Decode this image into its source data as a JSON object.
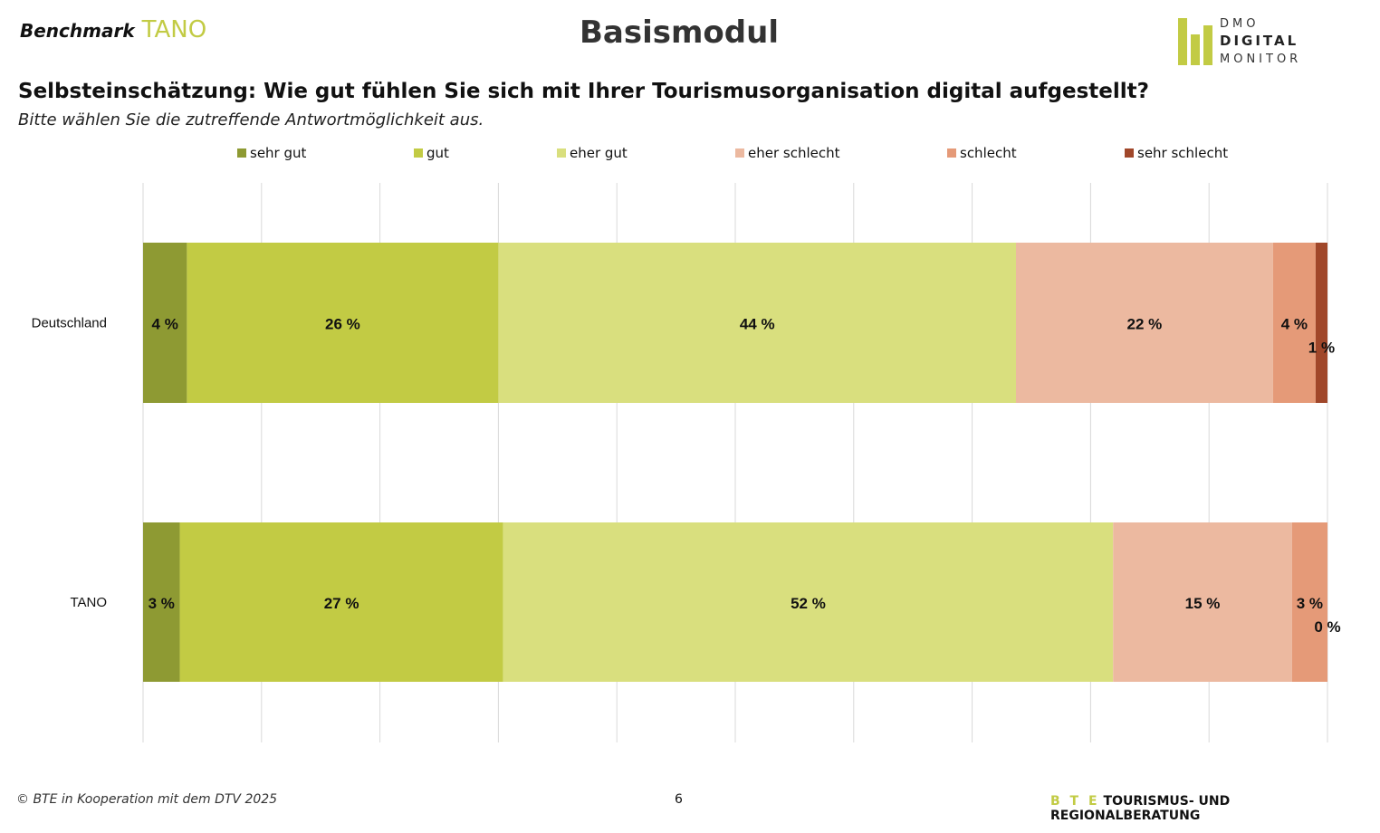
{
  "header": {
    "benchmark": "Benchmark",
    "region": "TANO",
    "title": "Basismodul",
    "logo_text": [
      "DMO",
      "DIGITAL",
      "MONITOR"
    ]
  },
  "question": "Selbsteinschätzung: Wie gut fühlen Sie sich mit Ihrer Tourismusorganisation digital aufgestellt?",
  "instruction": "Bitte wählen Sie die zutreffende Antwortmöglichkeit aus.",
  "footer": {
    "copyright": "© BTE in Kooperation mit dem DTV 2025",
    "page": "6",
    "brand_prefix": "B T E",
    "brand": "TOURISMUS- UND REGIONALBERATUNG"
  },
  "chart_data": {
    "type": "bar",
    "orientation": "horizontal-stacked-100",
    "categories": [
      "Deutschland",
      "TANO"
    ],
    "xlim": [
      0,
      100
    ],
    "grid": true,
    "legend_position": "top",
    "series": [
      {
        "name": "sehr gut",
        "color": "#8e9a33",
        "values": [
          3.7,
          3.1
        ],
        "labels": [
          "4 %",
          "3 %"
        ]
      },
      {
        "name": "gut",
        "color": "#c2cb44",
        "values": [
          26.3,
          27.3
        ],
        "labels": [
          "26 %",
          "27 %"
        ]
      },
      {
        "name": "eher gut",
        "color": "#d9df7e",
        "values": [
          43.7,
          51.5
        ],
        "labels": [
          "44 %",
          "52 %"
        ]
      },
      {
        "name": "eher schlecht",
        "color": "#ecb9a0",
        "values": [
          21.7,
          15.1
        ],
        "labels": [
          "22 %",
          "15 %"
        ]
      },
      {
        "name": "schlecht",
        "color": "#e59a78",
        "values": [
          3.6,
          3.0
        ],
        "labels": [
          "4 %",
          "3 %"
        ]
      },
      {
        "name": "sehr schlecht",
        "color": "#a0472a",
        "values": [
          1.0,
          0.0
        ],
        "labels": [
          "1 %",
          "0 %"
        ]
      }
    ]
  }
}
